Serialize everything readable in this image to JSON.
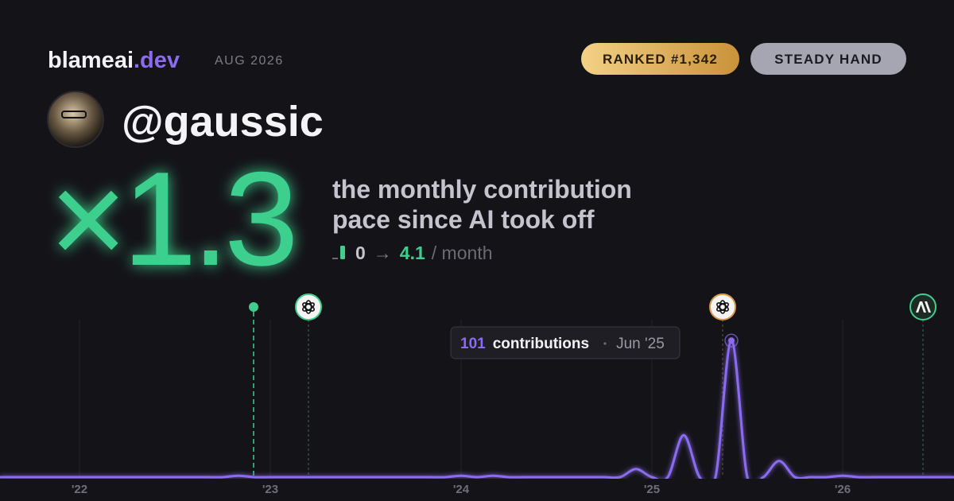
{
  "brand": {
    "name": "blameai",
    "tld": ".dev"
  },
  "period": "AUG 2026",
  "badges": [
    "RANKED #1,342",
    "STEADY HAND"
  ],
  "user": {
    "handle": "@gaussic"
  },
  "multiplier": "×1.3",
  "caption": [
    "the monthly contribution",
    "pace since AI took off"
  ],
  "pace": {
    "before": 0,
    "arrow": "→",
    "after": 4.1,
    "unit": "/ month"
  },
  "chart_data": {
    "type": "line",
    "x": [
      "2021-08",
      "2021-09",
      "2021-10",
      "2021-11",
      "2021-12",
      "2022-01",
      "2022-02",
      "2022-03",
      "2022-04",
      "2022-05",
      "2022-06",
      "2022-07",
      "2022-08",
      "2022-09",
      "2022-10",
      "2022-11",
      "2022-12",
      "2023-01",
      "2023-02",
      "2023-03",
      "2023-04",
      "2023-05",
      "2023-06",
      "2023-07",
      "2023-08",
      "2023-09",
      "2023-10",
      "2023-11",
      "2023-12",
      "2024-01",
      "2024-02",
      "2024-03",
      "2024-04",
      "2024-05",
      "2024-06",
      "2024-07",
      "2024-08",
      "2024-09",
      "2024-10",
      "2024-11",
      "2024-12",
      "2025-01",
      "2025-02",
      "2025-03",
      "2025-04",
      "2025-05",
      "2025-06",
      "2025-07",
      "2025-08",
      "2025-09",
      "2025-10",
      "2025-11",
      "2025-12",
      "2026-01",
      "2026-02",
      "2026-03",
      "2026-04",
      "2026-05",
      "2026-06",
      "2026-07",
      "2026-08"
    ],
    "series": [
      {
        "name": "contributions",
        "color": "#8b6cf0",
        "values": [
          0,
          0,
          0,
          0,
          0,
          0,
          0,
          0,
          0,
          0,
          0,
          0,
          0,
          0,
          0,
          1,
          0,
          0,
          0,
          0,
          0,
          0,
          0,
          0,
          0,
          0,
          0,
          0,
          0,
          1,
          0,
          1,
          0,
          0,
          0,
          0,
          0,
          0,
          0,
          0,
          6,
          0,
          0,
          31,
          0,
          0,
          101,
          0,
          0,
          12,
          0,
          0,
          0,
          1,
          0,
          0,
          0,
          0,
          0,
          0,
          0
        ]
      }
    ],
    "xlim": [
      "2021-08",
      "2026-08"
    ],
    "xticks": [
      {
        "value": "2022-01",
        "label": "'22"
      },
      {
        "value": "2023-01",
        "label": "'23"
      },
      {
        "value": "2024-01",
        "label": "'24"
      },
      {
        "value": "2025-01",
        "label": "'25"
      },
      {
        "value": "2026-01",
        "label": "'26"
      }
    ],
    "ylim": [
      0,
      110
    ],
    "tooltip": {
      "index": 46,
      "date": "Jun '25"
    }
  }
}
